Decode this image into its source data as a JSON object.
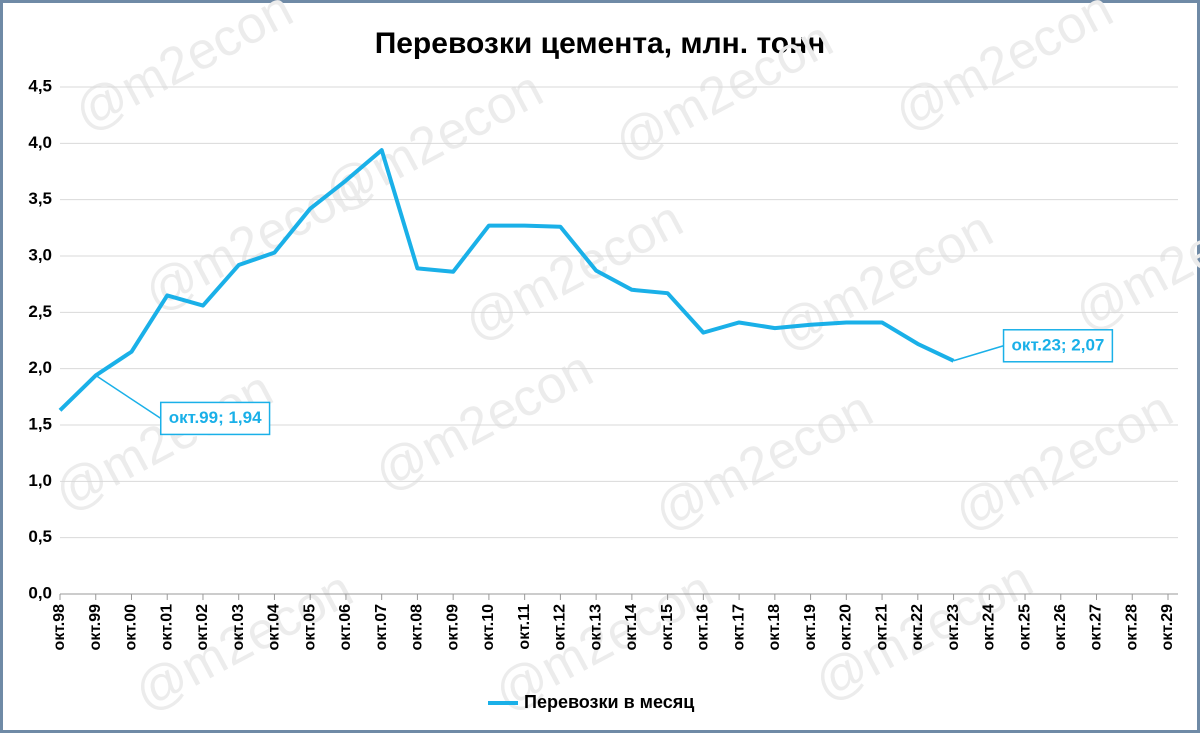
{
  "chart_data": {
    "type": "line",
    "title": "Перевозки цемента, млн. тонн",
    "watermark": "@m2econ",
    "categories": [
      "окт.98",
      "окт.99",
      "окт.00",
      "окт.01",
      "окт.02",
      "окт.03",
      "окт.04",
      "окт.05",
      "окт.06",
      "окт.07",
      "окт.08",
      "окт.09",
      "окт.10",
      "окт.11",
      "окт.12",
      "окт.13",
      "окт.14",
      "окт.15",
      "окт.16",
      "окт.17",
      "окт.18",
      "окт.19",
      "окт.20",
      "окт.21",
      "окт.22",
      "окт.23",
      "окт.24",
      "окт.25",
      "окт.26",
      "окт.27",
      "окт.28",
      "окт.29"
    ],
    "series": [
      {
        "name": "Перевозки в месяц",
        "color": "#1ab0e8",
        "values": [
          1.63,
          1.94,
          2.15,
          2.65,
          2.56,
          2.92,
          3.03,
          3.42,
          3.67,
          3.94,
          2.89,
          2.86,
          3.27,
          3.27,
          3.26,
          2.87,
          2.7,
          2.67,
          2.32,
          2.41,
          2.36,
          2.39,
          2.41,
          2.41,
          2.22,
          2.07,
          null,
          null,
          null,
          null,
          null,
          null
        ],
        "value_labels": [
          null,
          "окт.99; 1,94",
          null,
          null,
          null,
          null,
          null,
          null,
          null,
          null,
          null,
          null,
          null,
          null,
          null,
          null,
          null,
          null,
          null,
          null,
          null,
          null,
          null,
          null,
          null,
          "окт.23; 2,07",
          null,
          null,
          null,
          null,
          null,
          null
        ]
      }
    ],
    "ylim": [
      0,
      4.5
    ],
    "yticks": [
      {
        "value": 0,
        "label": "0,0"
      },
      {
        "value": 0.5,
        "label": "0,5"
      },
      {
        "value": 1,
        "label": "1,0"
      },
      {
        "value": 1.5,
        "label": "1,5"
      },
      {
        "value": 2,
        "label": "2,0"
      },
      {
        "value": 2.5,
        "label": "2,5"
      },
      {
        "value": 3,
        "label": "3,0"
      },
      {
        "value": 3.5,
        "label": "3,5"
      },
      {
        "value": 4,
        "label": "4,0"
      },
      {
        "value": 4.5,
        "label": "4,5"
      }
    ],
    "grid": true,
    "legend": "bottom"
  }
}
